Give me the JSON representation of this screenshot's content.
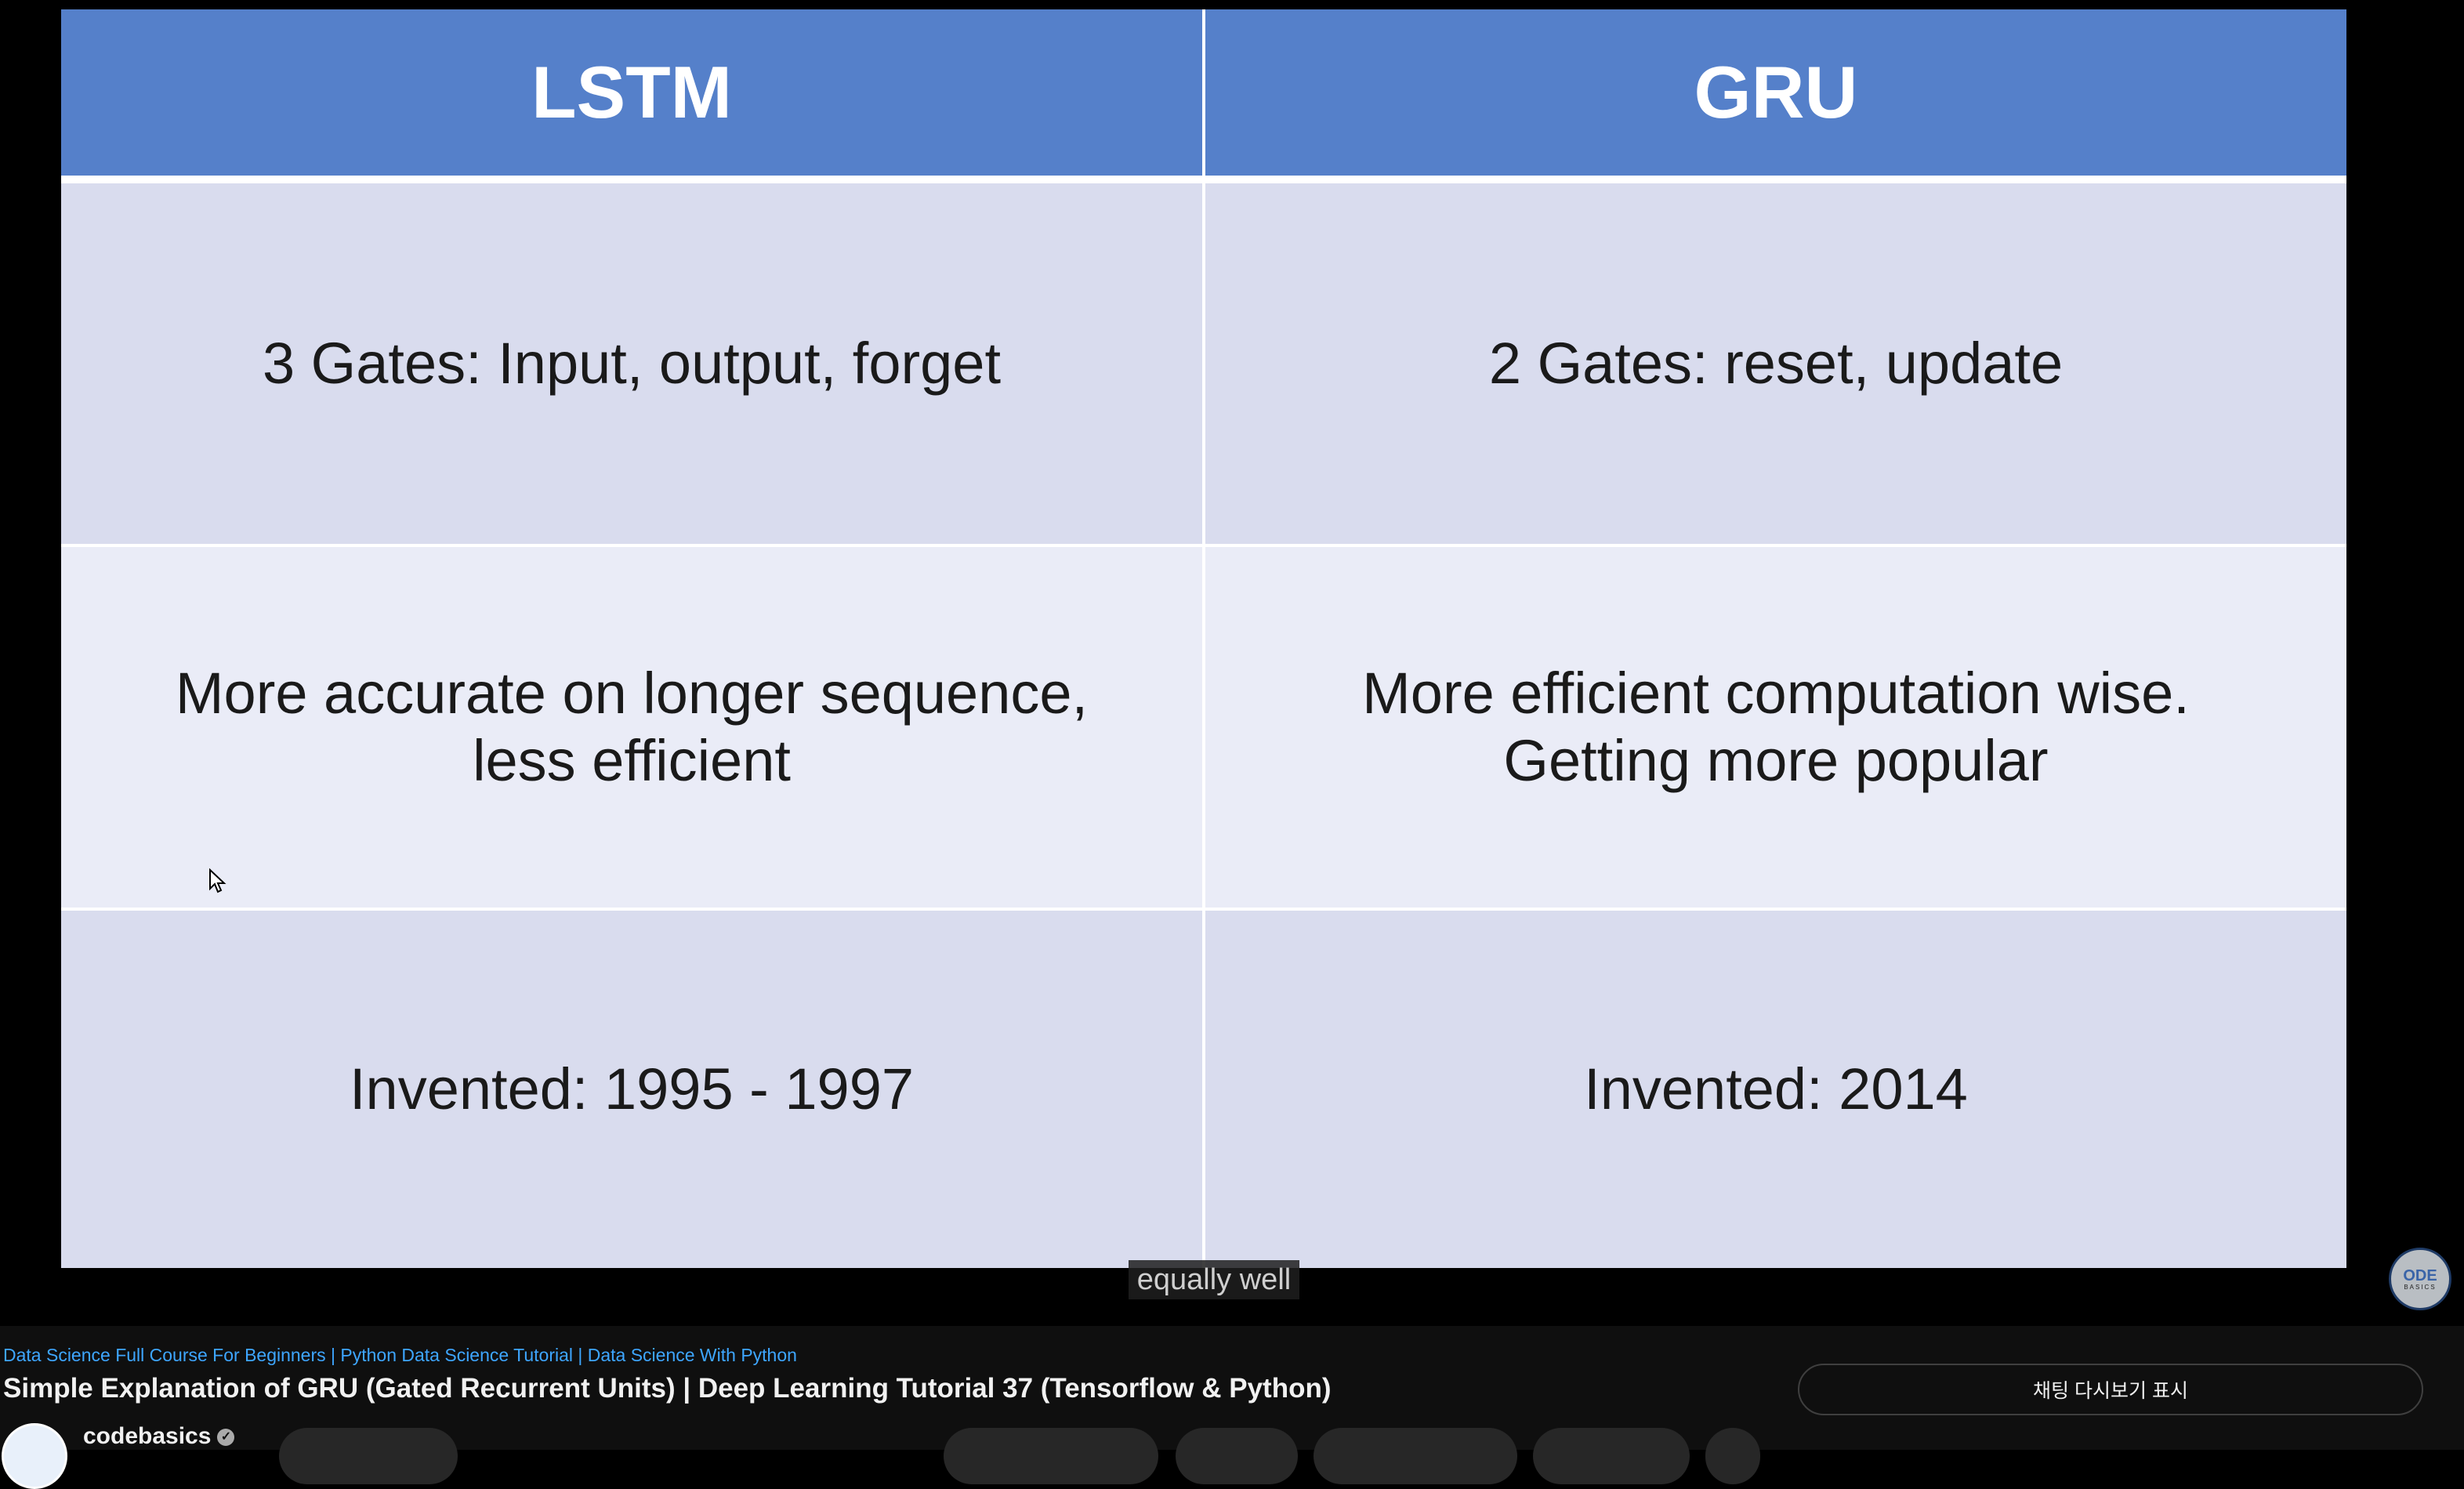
{
  "slide": {
    "headers": [
      "LSTM",
      "GRU"
    ],
    "rows": [
      [
        "3 Gates: Input, output, forget",
        "2 Gates: reset, update"
      ],
      [
        "More accurate on longer sequence, less efficient",
        "More efficient computation wise. Getting more popular"
      ],
      [
        "Invented: 1995 - 1997",
        "Invented: 2014"
      ]
    ],
    "header_color": "#5580ca"
  },
  "caption": "equally well",
  "watermark": "CODE BASICS",
  "video_info": {
    "playlist_link": "Data Science Full Course For Beginners | Python Data Science Tutorial | Data Science With Python",
    "title": "Simple Explanation of GRU (Gated Recurrent Units) | Deep Learning Tutorial 37 (Tensorflow & Python)",
    "channel": "codebasics",
    "chat_replay_button": "채팅 다시보기 표시"
  }
}
